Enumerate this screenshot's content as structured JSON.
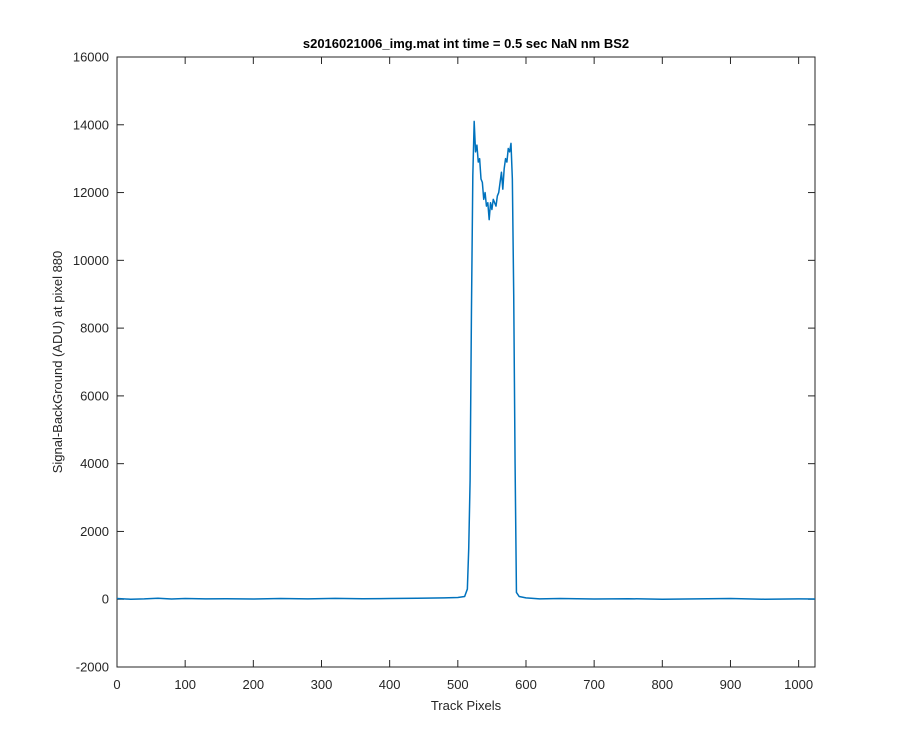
{
  "chart_data": {
    "type": "line",
    "title": "s2016021006_img.mat int time = 0.5 sec  NaN nm BS2",
    "xlabel": "Track Pixels",
    "ylabel": "Signal-BackGround (ADU) at pixel 880",
    "xlim": [
      0,
      1024
    ],
    "ylim": [
      -2000,
      16000
    ],
    "xticks": [
      0,
      100,
      200,
      300,
      400,
      500,
      600,
      700,
      800,
      900,
      1000
    ],
    "yticks": [
      -2000,
      0,
      2000,
      4000,
      6000,
      8000,
      10000,
      12000,
      14000,
      16000
    ],
    "xtick_labels": [
      "0",
      "100",
      "200",
      "300",
      "400",
      "500",
      "600",
      "700",
      "800",
      "900",
      "1000"
    ],
    "ytick_labels": [
      "-2000",
      "0",
      "2000",
      "4000",
      "6000",
      "8000",
      "10000",
      "12000",
      "14000",
      "16000"
    ],
    "grid": false,
    "series": [
      {
        "color": "#0072bd",
        "x": [
          0,
          20,
          40,
          60,
          80,
          100,
          130,
          160,
          200,
          240,
          280,
          320,
          360,
          400,
          440,
          480,
          500,
          510,
          514,
          516,
          518,
          520,
          522,
          524,
          526,
          528,
          530,
          532,
          534,
          536,
          538,
          540,
          542,
          544,
          546,
          548,
          550,
          552,
          554,
          556,
          558,
          560,
          562,
          564,
          566,
          568,
          570,
          572,
          574,
          576,
          578,
          580,
          582,
          584,
          586,
          590,
          600,
          620,
          650,
          700,
          750,
          800,
          850,
          900,
          950,
          1000,
          1024
        ],
        "y": [
          20,
          0,
          10,
          30,
          5,
          20,
          10,
          15,
          5,
          20,
          10,
          25,
          15,
          20,
          30,
          40,
          50,
          80,
          300,
          1500,
          3500,
          8500,
          12500,
          14100,
          13200,
          13400,
          12900,
          13000,
          12400,
          12300,
          11800,
          12000,
          11600,
          11700,
          11200,
          11700,
          11500,
          11800,
          11700,
          11600,
          11900,
          12000,
          12300,
          12600,
          12100,
          12700,
          13000,
          12900,
          13300,
          13200,
          13450,
          12400,
          9000,
          4000,
          200,
          80,
          40,
          10,
          20,
          5,
          15,
          0,
          10,
          20,
          0,
          10,
          5
        ]
      }
    ]
  }
}
